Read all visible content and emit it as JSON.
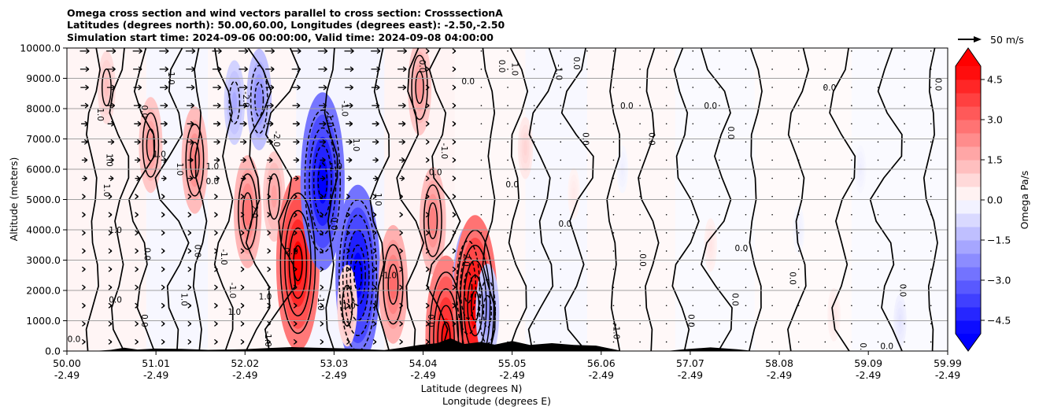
{
  "chart_data": {
    "type": "contour",
    "title_lines": [
      "Omega cross section and wind vectors parallel to cross section: CrosssectionA",
      "Latitudes (degrees north): 50.00,60.00, Longitudes (degrees east): -2.50,-2.50",
      "Simulation start time: 2024-09-06 00:00:00, Valid time: 2024-09-08 04:00:00"
    ],
    "xlabel": "Latitude (degrees N)",
    "xlabel2": "Longitude (degrees E)",
    "ylabel": "Altitude (meters)",
    "x_range": [
      50.0,
      59.99
    ],
    "y_range": [
      0,
      10000
    ],
    "x_ticks": [
      {
        "lat": "50.00",
        "lon": "-2.49",
        "value": 50.0
      },
      {
        "lat": "51.01",
        "lon": "-2.49",
        "value": 51.01
      },
      {
        "lat": "52.02",
        "lon": "-2.49",
        "value": 52.02
      },
      {
        "lat": "53.03",
        "lon": "-2.49",
        "value": 53.03
      },
      {
        "lat": "54.04",
        "lon": "-2.49",
        "value": 54.04
      },
      {
        "lat": "55.05",
        "lon": "-2.49",
        "value": 55.05
      },
      {
        "lat": "56.06",
        "lon": "-2.49",
        "value": 56.06
      },
      {
        "lat": "57.07",
        "lon": "-2.49",
        "value": 57.07
      },
      {
        "lat": "58.08",
        "lon": "-2.49",
        "value": 58.08
      },
      {
        "lat": "59.09",
        "lon": "-2.49",
        "value": 59.09
      },
      {
        "lat": "59.99",
        "lon": "-2.49",
        "value": 59.99
      }
    ],
    "y_ticks": [
      {
        "label": "0.0",
        "value": 0
      },
      {
        "label": "1000.0",
        "value": 1000
      },
      {
        "label": "2000.0",
        "value": 2000
      },
      {
        "label": "3000.0",
        "value": 3000
      },
      {
        "label": "4000.0",
        "value": 4000
      },
      {
        "label": "5000.0",
        "value": 5000
      },
      {
        "label": "6000.0",
        "value": 6000
      },
      {
        "label": "7000.0",
        "value": 7000
      },
      {
        "label": "8000.0",
        "value": 8000
      },
      {
        "label": "9000.0",
        "value": 9000
      },
      {
        "label": "10000.0",
        "value": 10000
      }
    ],
    "colorbar": {
      "label": "Omega Pa/s",
      "range": [
        -5.0,
        5.0
      ],
      "levels": 20,
      "ticks": [
        {
          "label": "4.5",
          "value": 4.5
        },
        {
          "label": "3.0",
          "value": 3.0
        },
        {
          "label": "1.5",
          "value": 1.5
        },
        {
          "label": "0.0",
          "value": 0.0
        },
        {
          "label": "−1.5",
          "value": -1.5
        },
        {
          "label": "−3.0",
          "value": -3.0
        },
        {
          "label": "−4.5",
          "value": -4.5
        }
      ],
      "colors": {
        "positive": "#ff0000",
        "negative": "#0000ff",
        "neutral": "#ffffff"
      }
    },
    "vector_key": {
      "label": "50 m/s"
    },
    "omega_features": [
      {
        "lat": 50.45,
        "alt": 8700,
        "omega": 1.2
      },
      {
        "lat": 50.95,
        "alt": 6800,
        "omega": 2.0
      },
      {
        "lat": 51.45,
        "alt": 6300,
        "omega": 2.4
      },
      {
        "lat": 51.9,
        "alt": 8200,
        "omega": -1.6
      },
      {
        "lat": 52.18,
        "alt": 8300,
        "omega": -2.2
      },
      {
        "lat": 52.05,
        "alt": 4600,
        "omega": 2.6
      },
      {
        "lat": 52.35,
        "alt": 5100,
        "omega": 1.8
      },
      {
        "lat": 52.62,
        "alt": 2900,
        "omega": 4.8
      },
      {
        "lat": 52.9,
        "alt": 5600,
        "omega": -4.9
      },
      {
        "lat": 53.3,
        "alt": 2500,
        "omega": -5.0
      },
      {
        "lat": 53.18,
        "alt": 1500,
        "omega": 1.5
      },
      {
        "lat": 53.7,
        "alt": 2200,
        "omega": 2.8
      },
      {
        "lat": 54.0,
        "alt": 8700,
        "omega": 2.0
      },
      {
        "lat": 54.15,
        "alt": 4300,
        "omega": 2.4
      },
      {
        "lat": 54.3,
        "alt": 400,
        "omega": 4.5
      },
      {
        "lat": 54.55,
        "alt": 2100,
        "omega": -3.0
      },
      {
        "lat": 54.63,
        "alt": 1500,
        "omega": 5.0
      },
      {
        "lat": 54.77,
        "alt": 1300,
        "omega": -2.0
      },
      {
        "lat": 55.2,
        "alt": 6700,
        "omega": 0.8
      },
      {
        "lat": 55.75,
        "alt": 5200,
        "omega": 0.4
      },
      {
        "lat": 56.3,
        "alt": 6000,
        "omega": -0.3
      },
      {
        "lat": 57.3,
        "alt": 3500,
        "omega": 0.5
      },
      {
        "lat": 58.3,
        "alt": 4000,
        "omega": -0.3
      },
      {
        "lat": 59.0,
        "alt": 6000,
        "omega": -0.3
      },
      {
        "lat": 59.45,
        "alt": 1000,
        "omega": -0.5
      },
      {
        "lat": 58.7,
        "alt": 1200,
        "omega": 0.5
      }
    ],
    "contour_labels": [
      {
        "text": "0.0",
        "lat": 50.08,
        "alt": 300
      },
      {
        "text": "1.0",
        "lat": 50.35,
        "alt": 7800
      },
      {
        "text": "1.0",
        "lat": 50.42,
        "alt": 5300
      },
      {
        "text": "1.0",
        "lat": 50.55,
        "alt": 3900
      },
      {
        "text": "1.0",
        "lat": 50.45,
        "alt": 6300
      },
      {
        "text": "0.0",
        "lat": 50.85,
        "alt": 7900
      },
      {
        "text": "0.0",
        "lat": 50.55,
        "alt": 1600
      },
      {
        "text": "0.0",
        "lat": 50.85,
        "alt": 1000
      },
      {
        "text": "0.0",
        "lat": 50.88,
        "alt": 3200
      },
      {
        "text": "1.0",
        "lat": 51.05,
        "alt": 6400
      },
      {
        "text": "1.0",
        "lat": 51.15,
        "alt": 9000
      },
      {
        "text": "1.0",
        "lat": 51.25,
        "alt": 6000
      },
      {
        "text": "1.0",
        "lat": 51.65,
        "alt": 6000
      },
      {
        "text": "1.0",
        "lat": 51.3,
        "alt": 1700
      },
      {
        "text": "0.0",
        "lat": 51.45,
        "alt": 3300
      },
      {
        "text": "0.0",
        "lat": 51.65,
        "alt": 5500
      },
      {
        "text": "-1.0",
        "lat": 51.75,
        "alt": 3100
      },
      {
        "text": "-1.0",
        "lat": 51.85,
        "alt": 2000
      },
      {
        "text": "1.0",
        "lat": 51.9,
        "alt": 1200
      },
      {
        "text": "-2.0",
        "lat": 52.0,
        "alt": 8300
      },
      {
        "text": "2.0",
        "lat": 52.1,
        "alt": 4600
      },
      {
        "text": "1.0",
        "lat": 52.25,
        "alt": 1700
      },
      {
        "text": "-1.0",
        "lat": 52.25,
        "alt": 400
      },
      {
        "text": "-2.0",
        "lat": 52.35,
        "alt": 7000
      },
      {
        "text": "2.0",
        "lat": 52.55,
        "alt": 3200
      },
      {
        "text": "-1.0",
        "lat": 52.85,
        "alt": 1600
      },
      {
        "text": "1.0",
        "lat": 52.95,
        "alt": 7600
      },
      {
        "text": "1.0",
        "lat": 53.05,
        "alt": 6000
      },
      {
        "text": "0.0",
        "lat": 53.0,
        "alt": 4200
      },
      {
        "text": "-1.0",
        "lat": 53.12,
        "alt": 8000
      },
      {
        "text": "1.0",
        "lat": 53.2,
        "alt": 1400
      },
      {
        "text": "1.0",
        "lat": 53.25,
        "alt": 6800
      },
      {
        "text": "1.0",
        "lat": 53.5,
        "alt": 5000
      },
      {
        "text": "-1.0",
        "lat": 53.65,
        "alt": 2400
      },
      {
        "text": "0.0",
        "lat": 54.0,
        "alt": 9400
      },
      {
        "text": "-1.0",
        "lat": 54.25,
        "alt": 6600
      },
      {
        "text": "0.0",
        "lat": 54.18,
        "alt": 5800
      },
      {
        "text": "2.0",
        "lat": 54.5,
        "alt": 3000
      },
      {
        "text": "0.0",
        "lat": 54.1,
        "alt": 1000
      },
      {
        "text": "0.0",
        "lat": 54.55,
        "alt": 8800
      },
      {
        "text": "0.0",
        "lat": 54.9,
        "alt": 9400
      },
      {
        "text": "1.0",
        "lat": 55.05,
        "alt": 9300
      },
      {
        "text": "0.0",
        "lat": 55.05,
        "alt": 5400
      },
      {
        "text": "-1.0",
        "lat": 55.55,
        "alt": 9200
      },
      {
        "text": "0.0",
        "lat": 55.75,
        "alt": 9500
      },
      {
        "text": "0.0",
        "lat": 55.65,
        "alt": 4100
      },
      {
        "text": "0.0",
        "lat": 55.85,
        "alt": 7000
      },
      {
        "text": "-1.0",
        "lat": 56.2,
        "alt": 650
      },
      {
        "text": "0.0",
        "lat": 56.35,
        "alt": 8000
      },
      {
        "text": "0.0",
        "lat": 56.5,
        "alt": 3000
      },
      {
        "text": "0.0",
        "lat": 56.6,
        "alt": 7000
      },
      {
        "text": "0.0",
        "lat": 57.3,
        "alt": 8000
      },
      {
        "text": "0.0",
        "lat": 57.5,
        "alt": 7200
      },
      {
        "text": "0.0",
        "lat": 57.55,
        "alt": 1700
      },
      {
        "text": "0.0",
        "lat": 57.65,
        "alt": 3300
      },
      {
        "text": "0.0",
        "lat": 57.05,
        "alt": 1000
      },
      {
        "text": "0.0",
        "lat": 58.2,
        "alt": 2400
      },
      {
        "text": "0.0",
        "lat": 58.65,
        "alt": 8600
      },
      {
        "text": "0.0",
        "lat": 59.45,
        "alt": 2000
      },
      {
        "text": "0.0",
        "lat": 59.0,
        "alt": 60
      },
      {
        "text": "0.0",
        "lat": 59.3,
        "alt": 60
      },
      {
        "text": "0.0",
        "lat": 59.85,
        "alt": 8800
      }
    ],
    "terrain": [
      [
        50.0,
        0
      ],
      [
        50.3,
        0
      ],
      [
        50.5,
        40
      ],
      [
        50.65,
        110
      ],
      [
        50.8,
        50
      ],
      [
        51.0,
        80
      ],
      [
        51.3,
        70
      ],
      [
        51.6,
        40
      ],
      [
        52.0,
        60
      ],
      [
        52.3,
        100
      ],
      [
        52.55,
        130
      ],
      [
        52.8,
        110
      ],
      [
        53.1,
        90
      ],
      [
        53.3,
        70
      ],
      [
        53.6,
        30
      ],
      [
        53.8,
        110
      ],
      [
        54.0,
        200
      ],
      [
        54.2,
        260
      ],
      [
        54.35,
        420
      ],
      [
        54.5,
        230
      ],
      [
        54.7,
        300
      ],
      [
        54.85,
        210
      ],
      [
        55.05,
        330
      ],
      [
        55.25,
        200
      ],
      [
        55.5,
        260
      ],
      [
        55.75,
        200
      ],
      [
        56.0,
        180
      ],
      [
        56.3,
        0
      ],
      [
        56.8,
        0
      ],
      [
        57.0,
        60
      ],
      [
        57.3,
        120
      ],
      [
        57.6,
        60
      ],
      [
        57.8,
        0
      ],
      [
        59.99,
        0
      ]
    ]
  }
}
